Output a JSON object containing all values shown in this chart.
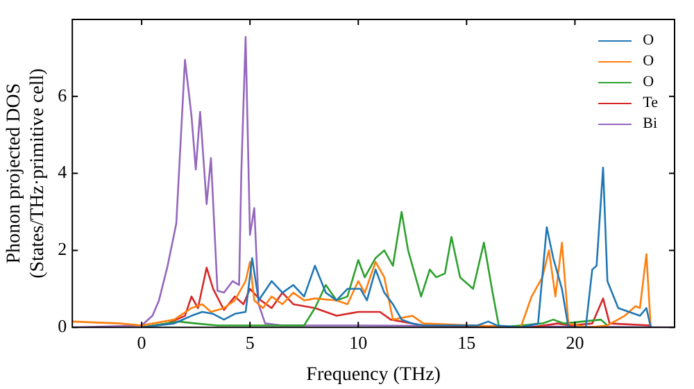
{
  "chart_data": {
    "type": "line",
    "xlabel": "Frequency (THz)",
    "ylabel": "Phonon projected DOS\n(States/THz·primitive cell)",
    "xlim": [
      -3.2,
      24.6
    ],
    "xticks": [
      0,
      5,
      10,
      15,
      20
    ],
    "ylim": [
      0,
      8
    ],
    "yticks": [
      0,
      2,
      4,
      6
    ],
    "legend": "top right",
    "series": [
      {
        "name": "O",
        "color": "#1f77b4",
        "x": [
          0,
          1.5,
          2.3,
          2.8,
          3.3,
          3.8,
          4.3,
          4.8,
          5.1,
          5.4,
          6.0,
          6.5,
          7.0,
          7.5,
          8.0,
          8.5,
          9.0,
          9.5,
          10.1,
          10.4,
          10.8,
          11.2,
          11.6,
          12.0,
          12.5,
          13,
          15.5,
          16,
          16.4,
          17.5,
          18.3,
          18.7,
          19,
          19.4,
          19.7,
          20.5,
          20.8,
          21.0,
          21.3,
          21.5,
          22,
          22.5,
          23.0,
          23.3,
          23.5
        ],
        "values": [
          0,
          0.1,
          0.3,
          0.4,
          0.35,
          0.2,
          0.35,
          0.4,
          1.8,
          0.7,
          1.2,
          0.9,
          1.1,
          0.8,
          1.6,
          0.9,
          0.7,
          1.0,
          1.0,
          0.7,
          1.5,
          0.9,
          0.6,
          0.2,
          0.1,
          0.05,
          0.05,
          0.15,
          0.05,
          0,
          0.1,
          2.6,
          1.8,
          1.0,
          0,
          0,
          1.5,
          1.6,
          4.15,
          1.2,
          0.5,
          0.4,
          0.3,
          0.5,
          0
        ]
      },
      {
        "name": "O",
        "color": "#ff7f0e",
        "x": [
          -3.2,
          -1,
          0,
          1.5,
          2.3,
          2.8,
          3.2,
          3.8,
          4.3,
          4.8,
          5.0,
          5.2,
          5.6,
          6.0,
          6.5,
          7.0,
          7.5,
          8.0,
          9.0,
          9.5,
          10.0,
          10.3,
          10.8,
          11.2,
          11.6,
          12.5,
          13,
          17.5,
          18.0,
          18.5,
          18.8,
          19.1,
          19.4,
          19.7,
          20.6,
          21.5,
          22.3,
          22.8,
          23.0,
          23.3,
          23.5
        ],
        "values": [
          0.15,
          0.1,
          0.05,
          0.2,
          0.5,
          0.6,
          0.4,
          0.5,
          0.7,
          1.2,
          1.7,
          0.7,
          0.5,
          0.8,
          0.6,
          0.9,
          0.7,
          0.75,
          0.7,
          0.6,
          1.2,
          0.9,
          1.7,
          1.3,
          0.2,
          0.3,
          0.1,
          0,
          0.8,
          1.3,
          2.0,
          0.8,
          2.2,
          0.1,
          0,
          0.05,
          0.3,
          0.55,
          0.5,
          1.9,
          0
        ]
      },
      {
        "name": "O",
        "color": "#2ca02c",
        "x": [
          0,
          1.7,
          2.5,
          3.5,
          5,
          7.5,
          8.0,
          8.5,
          9.0,
          9.5,
          10.0,
          10.3,
          10.8,
          11.2,
          11.6,
          12.0,
          12.3,
          12.6,
          12.9,
          13.3,
          13.6,
          14.0,
          14.3,
          14.7,
          15.3,
          15.8,
          16.2,
          16.5,
          18.5,
          19,
          19.5,
          21.2,
          21.5
        ],
        "values": [
          0,
          0.15,
          0.1,
          0.05,
          0.05,
          0.05,
          0.5,
          1.1,
          0.7,
          0.8,
          1.75,
          1.3,
          1.8,
          2.0,
          1.6,
          3.0,
          2.0,
          1.4,
          0.8,
          1.5,
          1.3,
          1.4,
          2.35,
          1.3,
          1.0,
          2.2,
          0.9,
          0,
          0.1,
          0.2,
          0.1,
          0.2,
          0.05
        ]
      },
      {
        "name": "Te",
        "color": "#d62728",
        "x": [
          0,
          1.2,
          2.0,
          2.3,
          2.6,
          3.0,
          3.3,
          3.8,
          4.3,
          4.7,
          5.0,
          5.5,
          6.0,
          6.5,
          7.0,
          8.0,
          9.0,
          10.0,
          11.0,
          11.5,
          12.5,
          13.0,
          18,
          19.2,
          19.8,
          20.8,
          21.3,
          21.6,
          23.5
        ],
        "values": [
          0,
          0.1,
          0.3,
          0.8,
          0.5,
          1.55,
          1.0,
          0.45,
          0.8,
          0.6,
          1.0,
          0.7,
          0.5,
          0.9,
          0.6,
          0.5,
          0.3,
          0.4,
          0.4,
          0.2,
          0.1,
          0.05,
          0,
          0.1,
          0.05,
          0.1,
          0.75,
          0.1,
          0.05
        ]
      },
      {
        "name": "Bi",
        "color": "#9467bd",
        "x": [
          -3.2,
          0,
          0.5,
          0.8,
          1.2,
          1.6,
          2.0,
          2.3,
          2.5,
          2.7,
          3.0,
          3.2,
          3.5,
          3.8,
          4.2,
          4.5,
          4.6,
          4.8,
          5.0,
          5.2,
          5.4,
          5.7,
          6.5,
          10,
          24.6
        ],
        "values": [
          0,
          0.05,
          0.3,
          0.7,
          1.6,
          2.7,
          6.95,
          5.5,
          4.1,
          5.6,
          3.2,
          4.4,
          0.95,
          0.9,
          1.2,
          1.1,
          4.0,
          7.55,
          2.4,
          3.1,
          0.6,
          0.1,
          0.05,
          0.05,
          0
        ]
      }
    ]
  }
}
